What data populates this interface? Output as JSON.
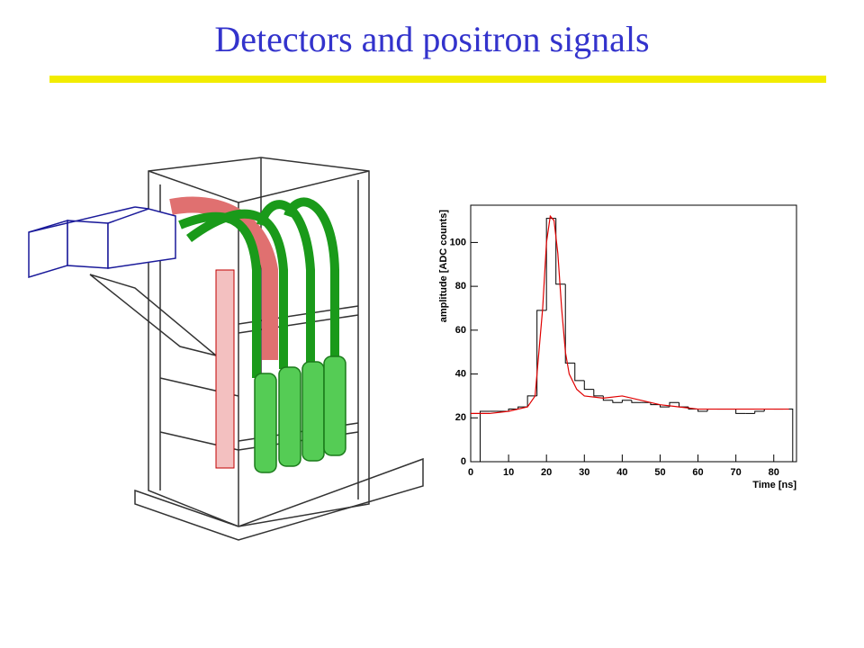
{
  "title": "Detectors and positron signals",
  "chart_data": {
    "type": "histogram",
    "x_label": "Time [ns]",
    "y_label": "amplitude [ADC counts]",
    "bins": [
      2.5,
      5,
      7.5,
      10,
      12.5,
      15,
      17.5,
      20,
      22.5,
      25,
      27.5,
      30,
      32.5,
      35,
      37.5,
      40,
      42.5,
      45,
      47.5,
      50,
      52.5,
      55,
      57.5,
      60,
      62.5,
      65,
      67.5,
      70,
      72.5,
      75,
      77.5,
      80,
      82.5,
      85
    ],
    "values": [
      23,
      23,
      23,
      24,
      25,
      30,
      69,
      111,
      81,
      45,
      37,
      33,
      30,
      28,
      27,
      28,
      27,
      27,
      26,
      25,
      27,
      25,
      24,
      23,
      24,
      24,
      24,
      22,
      22,
      23,
      24,
      24,
      24
    ],
    "color": "#000000",
    "fit": {
      "color": "#e00000",
      "x": [
        0,
        5,
        10,
        15,
        17,
        19,
        20,
        21,
        22,
        23,
        24,
        25,
        26,
        28,
        30,
        35,
        40,
        45,
        50,
        55,
        60,
        70,
        80,
        84
      ],
      "values": [
        22,
        22,
        23,
        25,
        30,
        70,
        100,
        112,
        110,
        95,
        70,
        50,
        40,
        33,
        30,
        29,
        30,
        28,
        26,
        25,
        24,
        24,
        24,
        24
      ]
    },
    "xlim": [
      0,
      86
    ],
    "ylim": [
      0,
      117
    ],
    "xticks": [
      0,
      10,
      20,
      30,
      40,
      50,
      60,
      70,
      80
    ],
    "yticks": [
      0,
      20,
      40,
      60,
      80,
      100
    ]
  }
}
